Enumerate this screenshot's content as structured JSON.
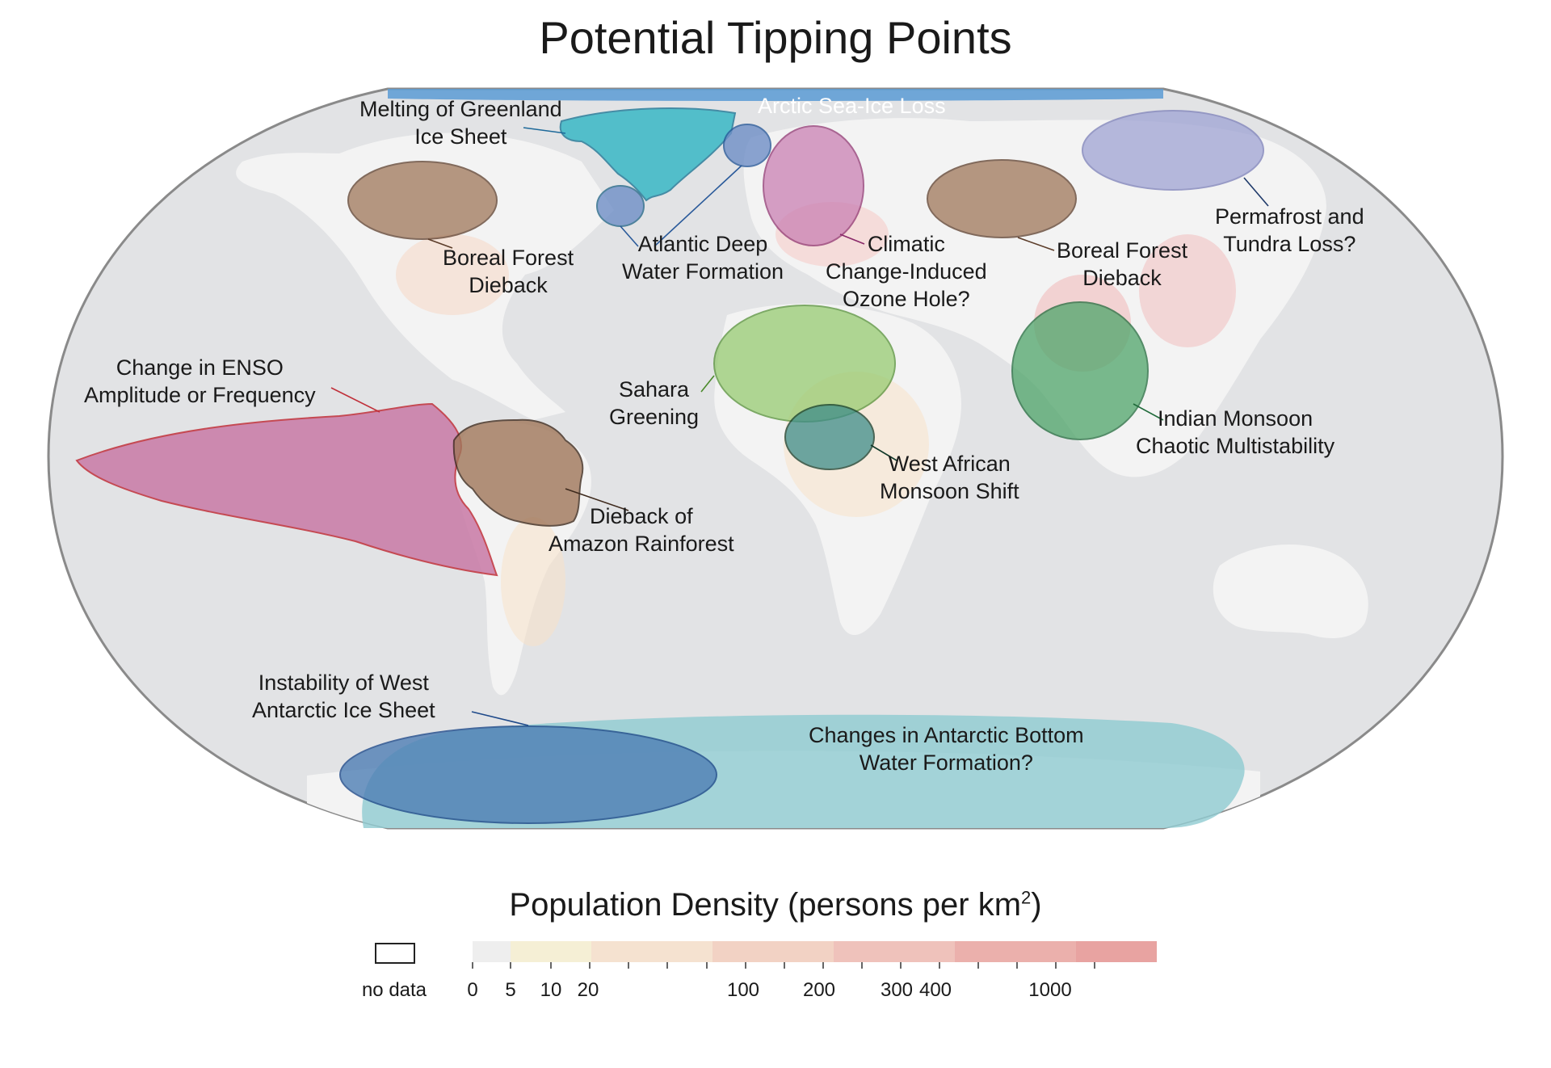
{
  "title": "Potential Tipping Points",
  "labels": {
    "arctic_sea_ice": "Arctic Sea-Ice Loss",
    "greenland": [
      "Melting of Greenland",
      "Ice Sheet"
    ],
    "boreal_na": [
      "Boreal Forest",
      "Dieback"
    ],
    "atlantic_deep": [
      "Atlantic Deep",
      "Water Formation"
    ],
    "ozone": [
      "Climatic",
      "Change-Induced",
      "Ozone Hole?"
    ],
    "boreal_eurasia": [
      "Boreal Forest",
      "Dieback"
    ],
    "permafrost": [
      "Permafrost and",
      "Tundra Loss?"
    ],
    "enso": [
      "Change in ENSO",
      "Amplitude or Frequency"
    ],
    "sahara": [
      "Sahara",
      "Greening"
    ],
    "indian_monsoon": [
      "Indian Monsoon",
      "Chaotic Multistability"
    ],
    "west_african": [
      "West African",
      "Monsoon Shift"
    ],
    "amazon": [
      "Dieback of",
      "Amazon Rainforest"
    ],
    "west_antarctic": [
      "Instability of West",
      "Antarctic Ice Sheet"
    ],
    "antarctic_bottom": [
      "Changes in Antarctic Bottom",
      "Water Formation?"
    ]
  },
  "legend": {
    "title": "Population Density (persons per km",
    "title_sup": "2",
    "title_close": ")",
    "no_data": "no data",
    "tick_labels": [
      "0",
      "5",
      "10",
      "20",
      "100",
      "200",
      "300",
      "400",
      "1000"
    ]
  },
  "colors": {
    "ocean": "#e2e3e5",
    "land": "#f3f3f3",
    "arctic": "#5b9bd5",
    "greenland": "#3ab8c6",
    "boreal": "#a0775a",
    "atlantic": "#6f8fc7",
    "ozone": "#c77ab0",
    "permafrost": "#9fa3d4",
    "enso": "#c97aa6",
    "sahara": "#92c96a",
    "indian": "#4fa56a",
    "west_african": "#3f8d8a",
    "west_antarctic": "#4f7fb5",
    "antarctic_bottom": "#8fcbd1"
  }
}
